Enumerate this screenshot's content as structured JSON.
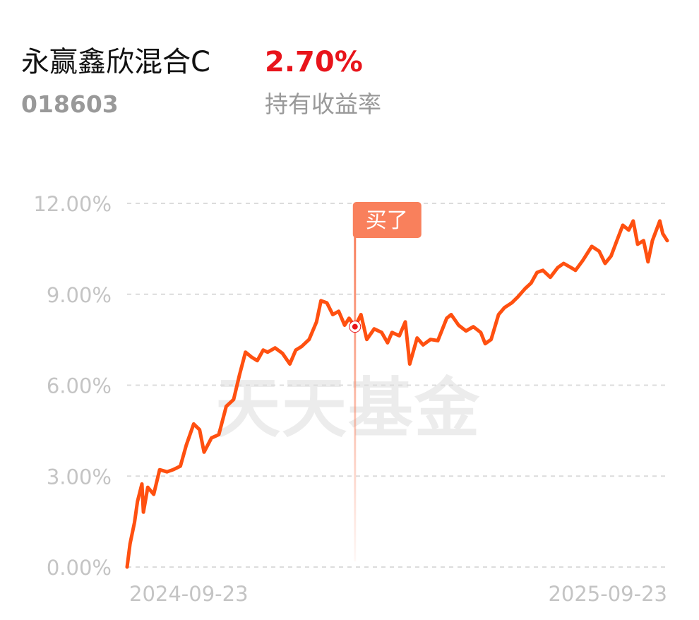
{
  "header": {
    "name": "永赢鑫欣混合C",
    "code": "018603",
    "return_value": "2.70%",
    "return_label": "持有收益率"
  },
  "chart_data": {
    "type": "line",
    "watermark": "天天基金",
    "x": [
      "2024-09-23",
      "2024-09-25",
      "2024-09-28",
      "2024-09-30",
      "2024-10-03",
      "2024-10-04",
      "2024-10-07",
      "2024-10-11",
      "2024-10-15",
      "2024-10-20",
      "2024-10-24",
      "2024-10-29",
      "2024-11-02",
      "2024-11-07",
      "2024-11-11",
      "2024-11-14",
      "2024-11-19",
      "2024-11-24",
      "2024-11-29",
      "2024-12-04",
      "2024-12-08",
      "2024-12-12",
      "2024-12-16",
      "2024-12-20",
      "2024-12-24",
      "2024-12-27",
      "2025-01-01",
      "2025-01-06",
      "2025-01-11",
      "2025-01-15",
      "2025-01-19",
      "2025-01-24",
      "2025-01-29",
      "2025-02-01",
      "2025-02-05",
      "2025-02-09",
      "2025-02-13",
      "2025-02-17",
      "2025-02-20",
      "2025-02-24",
      "2025-02-28",
      "2025-03-04",
      "2025-03-09",
      "2025-03-14",
      "2025-03-18",
      "2025-03-21",
      "2025-03-26",
      "2025-03-30",
      "2025-04-02",
      "2025-04-07",
      "2025-04-11",
      "2025-04-16",
      "2025-04-21",
      "2025-04-27",
      "2025-04-30",
      "2025-05-05",
      "2025-05-10",
      "2025-05-15",
      "2025-05-20",
      "2025-05-23",
      "2025-05-27",
      "2025-06-01",
      "2025-06-05",
      "2025-06-10",
      "2025-06-14",
      "2025-06-19",
      "2025-06-23",
      "2025-06-27",
      "2025-07-01",
      "2025-07-06",
      "2025-07-11",
      "2025-07-15",
      "2025-07-20",
      "2025-07-23",
      "2025-07-28",
      "2025-08-03",
      "2025-08-08",
      "2025-08-12",
      "2025-08-16",
      "2025-08-20",
      "2025-08-24",
      "2025-08-28",
      "2025-08-31",
      "2025-09-03",
      "2025-09-07",
      "2025-09-10",
      "2025-09-13",
      "2025-09-18",
      "2025-09-20",
      "2025-09-23"
    ],
    "series": [
      {
        "color": "#ff5010",
        "values": [
          0,
          0.77,
          1.47,
          2.16,
          2.74,
          1.81,
          2.63,
          2.4,
          3.21,
          3.14,
          3.21,
          3.33,
          4.02,
          4.72,
          4.53,
          3.79,
          4.26,
          4.37,
          5.3,
          5.53,
          6.35,
          7.09,
          6.93,
          6.81,
          7.16,
          7.09,
          7.23,
          7.05,
          6.7,
          7.16,
          7.28,
          7.51,
          8.09,
          8.79,
          8.72,
          8.33,
          8.44,
          7.98,
          8.21,
          7.93,
          8.33,
          7.51,
          7.86,
          7.74,
          7.4,
          7.74,
          7.63,
          8.09,
          6.7,
          7.56,
          7.33,
          7.51,
          7.47,
          8.21,
          8.33,
          7.98,
          7.79,
          7.93,
          7.74,
          7.37,
          7.51,
          8.33,
          8.56,
          8.72,
          8.91,
          9.19,
          9.37,
          9.72,
          9.79,
          9.56,
          9.88,
          10.02,
          9.88,
          9.79,
          10.12,
          10.58,
          10.42,
          10.02,
          10.26,
          10.77,
          11.28,
          11.12,
          11.42,
          10.65,
          10.77,
          10.07,
          10.77,
          11.42,
          11.0,
          10.77
        ]
      }
    ],
    "annotation": {
      "text": "买了",
      "x": "2025-02-24",
      "color": "#f9805c"
    },
    "xlim": [
      "2024-09-23",
      "2025-09-23"
    ],
    "xticks": [
      "2024-09-23",
      "2025-09-23"
    ],
    "ylim": [
      0,
      12
    ],
    "yticks": [
      {
        "value": 0,
        "label": "0.00%"
      },
      {
        "value": 3,
        "label": "3.00%"
      },
      {
        "value": 6,
        "label": "6.00%"
      },
      {
        "value": 9,
        "label": "9.00%"
      },
      {
        "value": 12,
        "label": "12.00%"
      }
    ],
    "grid": true
  }
}
